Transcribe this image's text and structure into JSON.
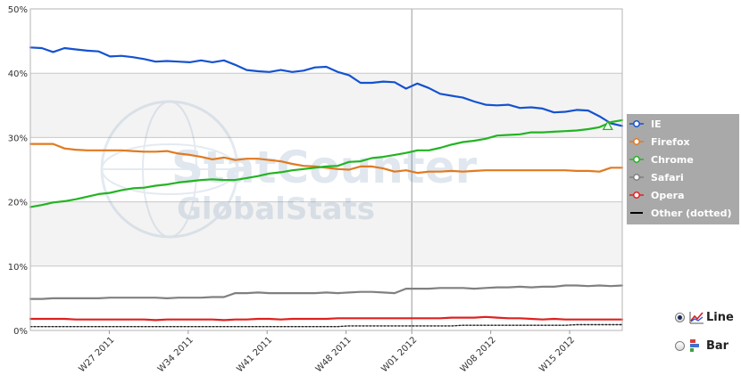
{
  "chart_data": {
    "type": "line",
    "yaxis": {
      "min": 0,
      "max": 50,
      "ticks": [
        0,
        10,
        20,
        30,
        40,
        50
      ],
      "tick_labels": [
        "0%",
        "10%",
        "20%",
        "30%",
        "40%",
        "50%"
      ]
    },
    "x_range": [
      0,
      45
    ],
    "x_ticks": [
      {
        "x": 6,
        "label": "W27 2011"
      },
      {
        "x": 12,
        "label": "W34 2011"
      },
      {
        "x": 18,
        "label": "W41 2011"
      },
      {
        "x": 24,
        "label": "W48 2011"
      },
      {
        "x": 29,
        "label": "W01 2012"
      },
      {
        "x": 35,
        "label": "W08 2012"
      },
      {
        "x": 41,
        "label": "W15 2012"
      }
    ],
    "highlight_x": 29,
    "grid": true,
    "legend_position": "right",
    "series": [
      {
        "name": "IE",
        "color": "#1452d0",
        "dash": "",
        "width": 2.2,
        "values": [
          44.0,
          43.9,
          43.3,
          43.9,
          43.7,
          43.5,
          43.4,
          42.6,
          42.7,
          42.5,
          42.2,
          41.8,
          41.9,
          41.8,
          41.7,
          42.0,
          41.7,
          42.0,
          41.3,
          40.5,
          40.3,
          40.2,
          40.5,
          40.2,
          40.4,
          40.9,
          41.0,
          40.2,
          39.7,
          38.5,
          38.5,
          38.7,
          38.6,
          37.6,
          38.4,
          37.7,
          36.8,
          36.5,
          36.2,
          35.6,
          35.1,
          35.0,
          35.1,
          34.6,
          34.7,
          34.5,
          33.9,
          34.0,
          34.3,
          34.2,
          33.3,
          32.2,
          31.8
        ]
      },
      {
        "name": "Firefox",
        "color": "#e07a20",
        "dash": "",
        "width": 2.2,
        "values": [
          29.0,
          29.0,
          29.0,
          28.3,
          28.1,
          28.0,
          28.0,
          28.0,
          28.0,
          27.9,
          27.8,
          27.8,
          27.9,
          27.5,
          27.3,
          27.0,
          26.6,
          26.9,
          26.5,
          26.7,
          26.7,
          26.5,
          26.3,
          25.9,
          25.6,
          25.5,
          25.3,
          25.1,
          25.0,
          25.5,
          25.5,
          25.2,
          24.7,
          24.9,
          24.5,
          24.7,
          24.7,
          24.8,
          24.7,
          24.8,
          24.9,
          24.9,
          24.9,
          24.9,
          24.9,
          24.9,
          24.9,
          24.9,
          24.8,
          24.8,
          24.7,
          25.3,
          25.3
        ]
      },
      {
        "name": "Chrome",
        "color": "#22b422",
        "dash": "",
        "width": 2.2,
        "values": [
          19.2,
          19.5,
          19.9,
          20.1,
          20.4,
          20.8,
          21.2,
          21.4,
          21.8,
          22.1,
          22.2,
          22.5,
          22.7,
          23.0,
          23.2,
          23.4,
          23.5,
          23.4,
          23.4,
          23.7,
          24.0,
          24.4,
          24.6,
          24.9,
          25.1,
          25.3,
          25.5,
          25.6,
          26.2,
          26.3,
          26.8,
          27.0,
          27.3,
          27.6,
          28.0,
          28.0,
          28.4,
          28.9,
          29.3,
          29.5,
          29.8,
          30.3,
          30.4,
          30.5,
          30.8,
          30.8,
          30.9,
          31.0,
          31.1,
          31.3,
          31.6,
          32.4,
          32.7
        ]
      },
      {
        "name": "Safari",
        "color": "#808080",
        "dash": "",
        "width": 2.2,
        "values": [
          4.9,
          4.9,
          5.0,
          5.0,
          5.0,
          5.0,
          5.0,
          5.1,
          5.1,
          5.1,
          5.1,
          5.1,
          5.0,
          5.1,
          5.1,
          5.1,
          5.2,
          5.2,
          5.8,
          5.8,
          5.9,
          5.8,
          5.8,
          5.8,
          5.8,
          5.8,
          5.9,
          5.8,
          5.9,
          6.0,
          6.0,
          5.9,
          5.8,
          6.5,
          6.5,
          6.5,
          6.6,
          6.6,
          6.6,
          6.5,
          6.6,
          6.7,
          6.7,
          6.8,
          6.7,
          6.8,
          6.8,
          7.0,
          7.0,
          6.9,
          7.0,
          6.9,
          7.0
        ]
      },
      {
        "name": "Opera",
        "color": "#e02020",
        "dash": "",
        "width": 2.2,
        "values": [
          1.8,
          1.8,
          1.8,
          1.8,
          1.7,
          1.7,
          1.7,
          1.7,
          1.7,
          1.7,
          1.7,
          1.6,
          1.7,
          1.7,
          1.7,
          1.7,
          1.7,
          1.6,
          1.7,
          1.7,
          1.8,
          1.8,
          1.7,
          1.8,
          1.8,
          1.8,
          1.8,
          1.9,
          1.9,
          1.9,
          1.9,
          1.9,
          1.9,
          1.9,
          1.9,
          1.9,
          1.9,
          2.0,
          2.0,
          2.0,
          2.1,
          2.0,
          1.9,
          1.9,
          1.8,
          1.7,
          1.8,
          1.7,
          1.7,
          1.7,
          1.7,
          1.7,
          1.7
        ]
      },
      {
        "name": "Other (dotted)",
        "color": "#222222",
        "dash": "2,2",
        "width": 1.4,
        "values": [
          0.6,
          0.6,
          0.6,
          0.6,
          0.6,
          0.6,
          0.6,
          0.6,
          0.6,
          0.6,
          0.6,
          0.6,
          0.6,
          0.6,
          0.6,
          0.6,
          0.6,
          0.6,
          0.6,
          0.6,
          0.6,
          0.6,
          0.6,
          0.6,
          0.6,
          0.6,
          0.6,
          0.6,
          0.7,
          0.7,
          0.7,
          0.7,
          0.7,
          0.7,
          0.7,
          0.7,
          0.7,
          0.7,
          0.8,
          0.8,
          0.8,
          0.8,
          0.8,
          0.8,
          0.8,
          0.8,
          0.8,
          0.8,
          0.9,
          0.9,
          0.9,
          0.9,
          0.9
        ]
      }
    ],
    "crossover_marker": {
      "series": "Chrome",
      "x": 43.9,
      "value": 31.8
    }
  },
  "watermark": {
    "line1": "StatCounter",
    "line2": "GlobalStats"
  },
  "view_toggle": {
    "line_label": "Line",
    "bar_label": "Bar",
    "selected": "Line"
  }
}
